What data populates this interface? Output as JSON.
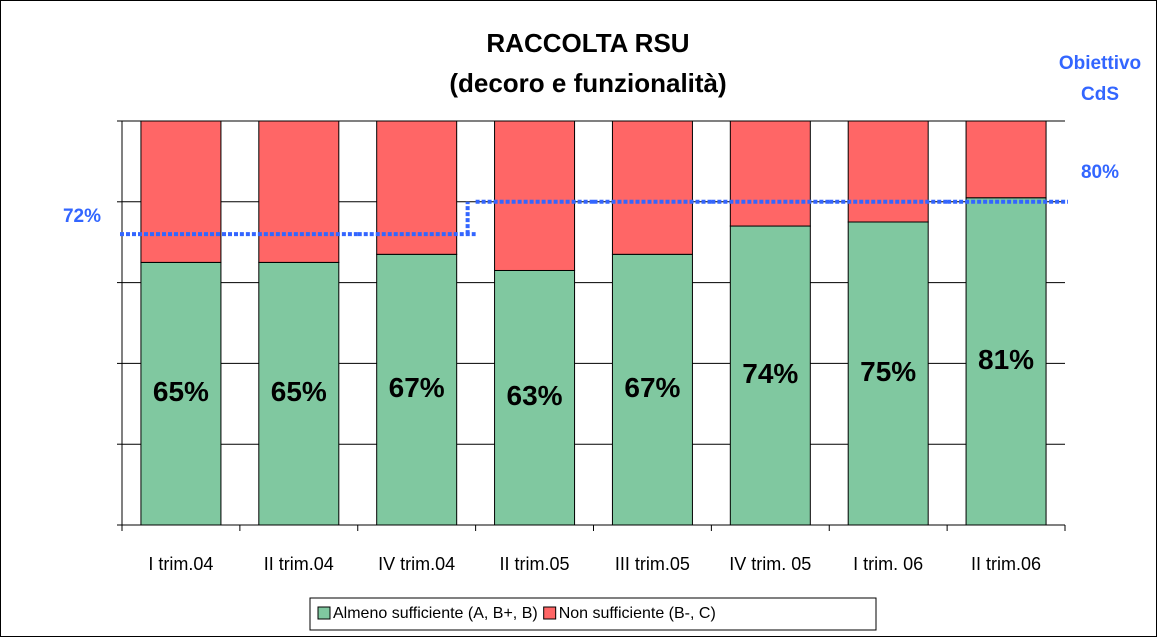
{
  "chart_data": {
    "type": "stacked_bar",
    "title": "RACCOLTA RSU",
    "subtitle": "(decoro e funzionalità)",
    "categories": [
      "I trim.04",
      "II trim.04",
      "IV trim.04",
      "II trim.05",
      "III trim.05",
      "IV trim. 05",
      "I trim. 06",
      "II trim.06"
    ],
    "series": [
      {
        "name": "Almeno sufficiente (A, B+, B)",
        "color": "#80c8a0",
        "values": [
          65,
          65,
          67,
          63,
          67,
          74,
          75,
          81
        ],
        "value_labels": [
          "65%",
          "65%",
          "67%",
          "63%",
          "67%",
          "74%",
          "75%",
          "81%"
        ]
      },
      {
        "name": "Non sufficiente (B-, C)",
        "color": "#ff6666",
        "values": [
          35,
          35,
          33,
          37,
          33,
          26,
          25,
          19
        ]
      }
    ],
    "target": {
      "name": [
        "Obiettivo",
        "CdS"
      ],
      "color": "#3366ff",
      "values": [
        72,
        72,
        72,
        80,
        80,
        80,
        80,
        80
      ],
      "start_label": "72%",
      "end_label": "80%"
    },
    "ylim": [
      0,
      100
    ],
    "yticks": [
      0,
      20,
      40,
      60,
      80,
      100
    ],
    "grid": true
  }
}
